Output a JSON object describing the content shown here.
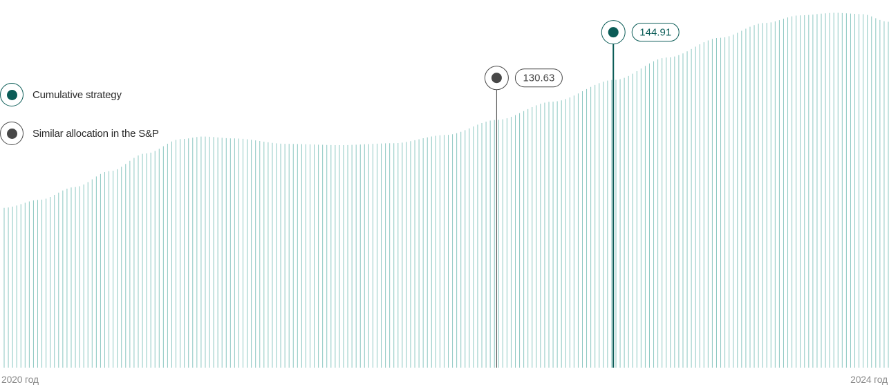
{
  "colors": {
    "strategy": "#0b5c57",
    "sp": "#484848",
    "bars": "#8bc7c1",
    "axis_text": "#8a8a8a"
  },
  "legend": {
    "strategy_label": "Cumulative strategy",
    "sp_label": "Similar allocation in the S&P"
  },
  "axis": {
    "start_label": "2020 год",
    "end_label": "2024 год"
  },
  "chart_data": {
    "type": "bar",
    "title": "",
    "xlabel": "",
    "ylabel": "",
    "x_range": [
      "2020",
      "2024"
    ],
    "bar_count": 212,
    "profile_points": [
      {
        "t": 0.0,
        "v": 90.0
      },
      {
        "t": 0.04,
        "v": 92.5
      },
      {
        "t": 0.08,
        "v": 96.5
      },
      {
        "t": 0.12,
        "v": 101.5
      },
      {
        "t": 0.16,
        "v": 107.0
      },
      {
        "t": 0.2,
        "v": 111.5
      },
      {
        "t": 0.225,
        "v": 112.3
      },
      {
        "t": 0.26,
        "v": 111.7
      },
      {
        "t": 0.32,
        "v": 110.0
      },
      {
        "t": 0.38,
        "v": 109.6
      },
      {
        "t": 0.44,
        "v": 110.2
      },
      {
        "t": 0.5,
        "v": 112.8
      },
      {
        "t": 0.557,
        "v": 117.5
      },
      {
        "t": 0.62,
        "v": 123.2
      },
      {
        "t": 0.69,
        "v": 130.0
      },
      {
        "t": 0.75,
        "v": 137.0
      },
      {
        "t": 0.81,
        "v": 143.2
      },
      {
        "t": 0.86,
        "v": 147.8
      },
      {
        "t": 0.9,
        "v": 150.2
      },
      {
        "t": 0.94,
        "v": 151.0
      },
      {
        "t": 0.97,
        "v": 150.6
      },
      {
        "t": 1.0,
        "v": 148.2
      }
    ],
    "ylim": [
      40,
      155
    ],
    "annotations": [
      {
        "series": "sp",
        "t": 0.557,
        "value": "130.63",
        "numeric": 130.63
      },
      {
        "series": "strategy",
        "t": 0.689,
        "value": "144.91",
        "numeric": 144.91
      }
    ]
  }
}
